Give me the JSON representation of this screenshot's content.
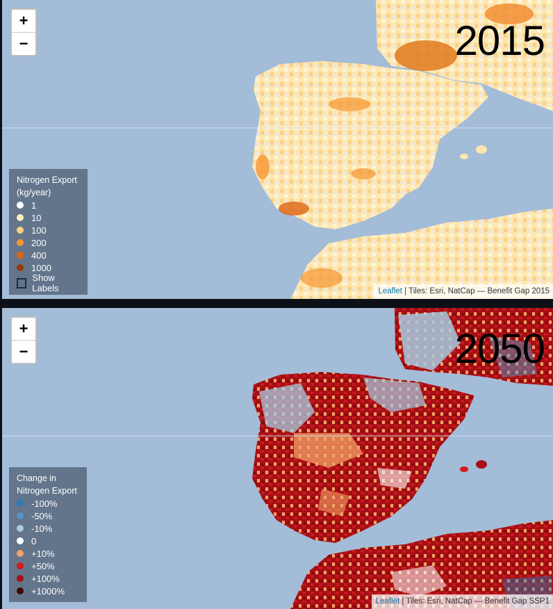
{
  "colors": {
    "sea": "#a3bcd8",
    "land_base": "#ffffff",
    "attribution_link": "#0078a8"
  },
  "top_map": {
    "year": "2015",
    "zoom_in": "+",
    "zoom_out": "−",
    "legend": {
      "title_line1": "Nitrogen Export",
      "title_line2": "(kg/year)",
      "items": [
        {
          "label": "1",
          "color": "#ffffff"
        },
        {
          "label": "10",
          "color": "#fdf0be"
        },
        {
          "label": "100",
          "color": "#fed27f"
        },
        {
          "label": "200",
          "color": "#f7952f"
        },
        {
          "label": "400",
          "color": "#dd6413"
        },
        {
          "label": "1000",
          "color": "#9a3a08"
        }
      ],
      "checkbox_label": "Show Labels"
    },
    "attribution": {
      "link": "Leaflet",
      "text": " | Tiles: Esri, NatCap — Benefit Gap 2015"
    }
  },
  "bottom_map": {
    "year": "2050",
    "zoom_in": "+",
    "zoom_out": "−",
    "legend": {
      "title_line1": "Change in",
      "title_line2": "Nitrogen Export",
      "items": [
        {
          "label": "-100%",
          "color": "#2c7bb6"
        },
        {
          "label": "-50%",
          "color": "#5b94c2"
        },
        {
          "label": "-10%",
          "color": "#a8cbe0"
        },
        {
          "label": "0",
          "color": "#ffffff"
        },
        {
          "label": "+10%",
          "color": "#f4a266"
        },
        {
          "label": "+50%",
          "color": "#d7191c"
        },
        {
          "label": "+100%",
          "color": "#a50f15"
        },
        {
          "label": "+1000%",
          "color": "#3d0808"
        }
      ]
    },
    "attribution": {
      "link": "Leaflet",
      "text": " | Tiles: Esri, NatCap — Benefit Gap SSP1"
    }
  }
}
